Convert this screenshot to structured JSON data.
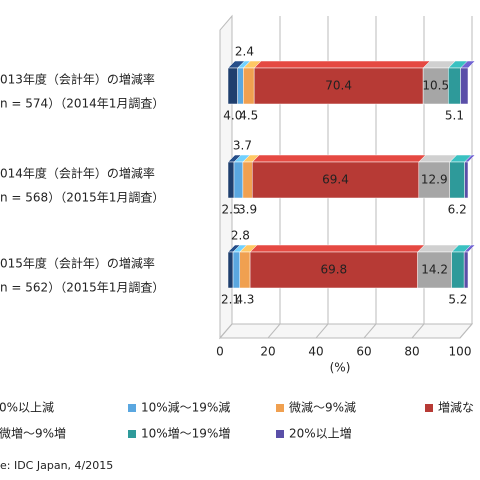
{
  "chart_data": {
    "type": "stacked-bar-3d",
    "categories": [
      [
        "013年度（会計年）の増減率",
        "n = 574）（2014年1月調査）"
      ],
      [
        "014年度（会計年）の増減率",
        "n = 568）（2015年1月調査）"
      ],
      [
        "015年度（会計年）の増減率",
        "n = 562）（2015年1月調査）"
      ]
    ],
    "series": [
      {
        "name": "0%以上減",
        "color": "#1f3f6e",
        "values": [
          4.0,
          2.5,
          2.1
        ],
        "value_labels": [
          "4.0",
          "2.5",
          "2.1"
        ],
        "label_position": "below"
      },
      {
        "name": "10%減～19%減",
        "color": "#5aa7e0",
        "values": [
          2.4,
          3.7,
          2.8
        ],
        "value_labels": [
          "2.4",
          "3.7",
          "2.8"
        ],
        "label_position": "above"
      },
      {
        "name": "微減～9%減",
        "color": "#f0a050",
        "values": [
          4.5,
          3.9,
          4.3
        ],
        "value_labels": [
          "4.5",
          "3.9",
          "4.3"
        ],
        "label_position": "below"
      },
      {
        "name": "増減な",
        "color": "#b73a35",
        "values": [
          70.4,
          69.4,
          69.8
        ],
        "label_position": "inside"
      },
      {
        "name": "微増～9%増",
        "color": "#a6a6a6",
        "values": [
          10.5,
          12.9,
          14.2
        ],
        "label_position": "inside"
      },
      {
        "name": "10%増～19%増",
        "color": "#2e9a9a",
        "values": [
          5.1,
          6.2,
          5.2
        ],
        "label_position": "below"
      },
      {
        "name": "20%以上増",
        "color": "#5a4fa8",
        "values": [
          3.1,
          1.4,
          1.6
        ]
      }
    ],
    "xlim": [
      0,
      100
    ],
    "xticks": [
      0,
      20,
      40,
      60,
      80,
      100
    ],
    "x_label": "(%)",
    "grid": true,
    "source": "e: IDC Japan, 4/2015"
  }
}
